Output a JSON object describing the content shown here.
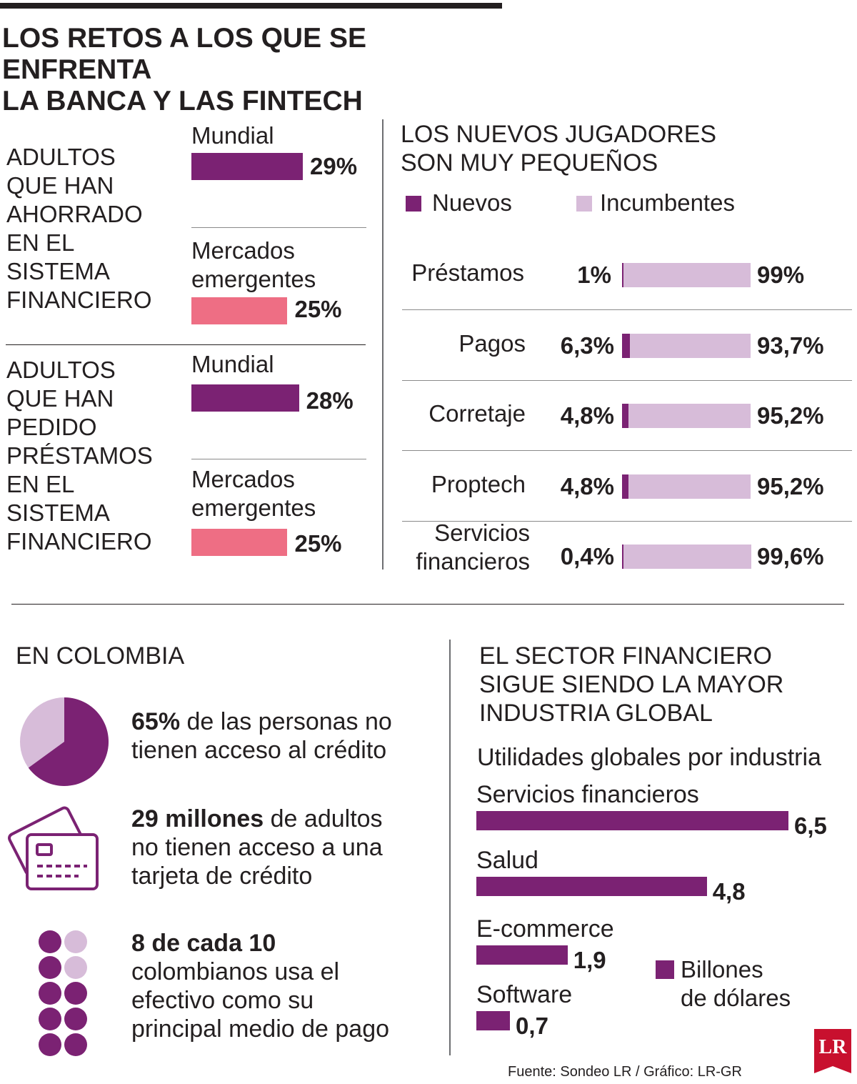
{
  "title": {
    "line1": "LOS RETOS A LOS QUE SE ENFRENTA",
    "line2": "LA BANCA Y LAS FINTECH"
  },
  "colors": {
    "purple": "#7b2273",
    "lilac": "#d7bcd9",
    "pink": "#ee6e84"
  },
  "chart_data": [
    {
      "type": "bar",
      "title": "ADULTOS QUE HAN AHORRADO EN EL SISTEMA FINANCIERO",
      "categories": [
        "Mundial",
        "Mercados emergentes"
      ],
      "values": [
        29,
        25
      ],
      "value_labels": [
        "29%",
        "25%"
      ],
      "title_lines": [
        "ADULTOS",
        "QUE HAN",
        "AHORRADO",
        "EN EL",
        "SISTEMA",
        "FINANCIERO"
      ],
      "category_lines": [
        [
          "Mundial"
        ],
        [
          "Mercados",
          "emergentes"
        ]
      ]
    },
    {
      "type": "bar",
      "title": "ADULTOS QUE HAN PEDIDO PRÉSTAMOS EN EL SISTEMA FINANCIERO",
      "categories": [
        "Mundial",
        "Mercados emergentes"
      ],
      "values": [
        28,
        25
      ],
      "value_labels": [
        "28%",
        "25%"
      ],
      "title_lines": [
        "ADULTOS",
        "QUE HAN",
        "PEDIDO",
        "PRÉSTAMOS",
        "EN EL",
        "SISTEMA",
        "FINANCIERO"
      ],
      "category_lines": [
        [
          "Mundial"
        ],
        [
          "Mercados",
          "emergentes"
        ]
      ]
    },
    {
      "type": "bar",
      "title": "LOS NUEVOS JUGADORES SON MUY PEQUEÑOS",
      "title_lines": [
        "LOS NUEVOS JUGADORES",
        "SON MUY PEQUEÑOS"
      ],
      "categories": [
        "Préstamos",
        "Pagos",
        "Corretaje",
        "Proptech",
        "Servicios financieros"
      ],
      "category_lines": [
        [
          "Préstamos"
        ],
        [
          "Pagos"
        ],
        [
          "Corretaje"
        ],
        [
          "Proptech"
        ],
        [
          "Servicios",
          "financieros"
        ]
      ],
      "series": [
        {
          "name": "Nuevos",
          "values": [
            1,
            6.3,
            4.8,
            4.8,
            0.4
          ],
          "labels": [
            "1%",
            "6,3%",
            "4,8%",
            "4,8%",
            "0,4%"
          ]
        },
        {
          "name": "Incumbentes",
          "values": [
            99,
            93.7,
            95.2,
            95.2,
            99.6
          ],
          "labels": [
            "99%",
            "93,7%",
            "95,2%",
            "95,2%",
            "99,6%"
          ]
        }
      ],
      "stacked": true
    },
    {
      "type": "bar",
      "title": "EL SECTOR FINANCIERO SIGUE SIENDO LA MAYOR INDUSTRIA GLOBAL",
      "title_lines": [
        "EL SECTOR FINANCIERO",
        "SIGUE SIENDO LA MAYOR",
        "INDUSTRIA GLOBAL"
      ],
      "subtitle": "Utilidades globales por industria",
      "categories": [
        "Servicios financieros",
        "Salud",
        "E-commerce",
        "Software"
      ],
      "values": [
        6.5,
        4.8,
        1.9,
        0.7
      ],
      "value_labels": [
        "6,5",
        "4,8",
        "1,9",
        "0,7"
      ],
      "legend_lines": [
        "Billones",
        "de dólares"
      ]
    },
    {
      "type": "pie",
      "values": [
        65,
        35
      ]
    }
  ],
  "colombia": {
    "title": "EN COLOMBIA",
    "stat1": {
      "bold": "65%",
      "rest1": " de las personas no",
      "line2": "tienen acceso al crédito"
    },
    "stat2": {
      "bold": "29 millones",
      "rest1": " de adultos",
      "line2": "no tienen acceso a una",
      "line3": "tarjeta de crédito"
    },
    "stat3": {
      "bold": "8 de cada 10",
      "line2": "colombianos usa el",
      "line3": "efectivo como su",
      "line4": "principal medio de pago"
    },
    "dots_filled": 8,
    "dots_total": 10
  },
  "icons": {
    "pie": "pie-chart-icon",
    "card": "credit-card-icon",
    "dots": "dot-grid-icon",
    "logo": "LR"
  },
  "footer": {
    "source": "Fuente: Sondeo LR / Gráfico: LR-GR",
    "logo_text": "LR"
  }
}
